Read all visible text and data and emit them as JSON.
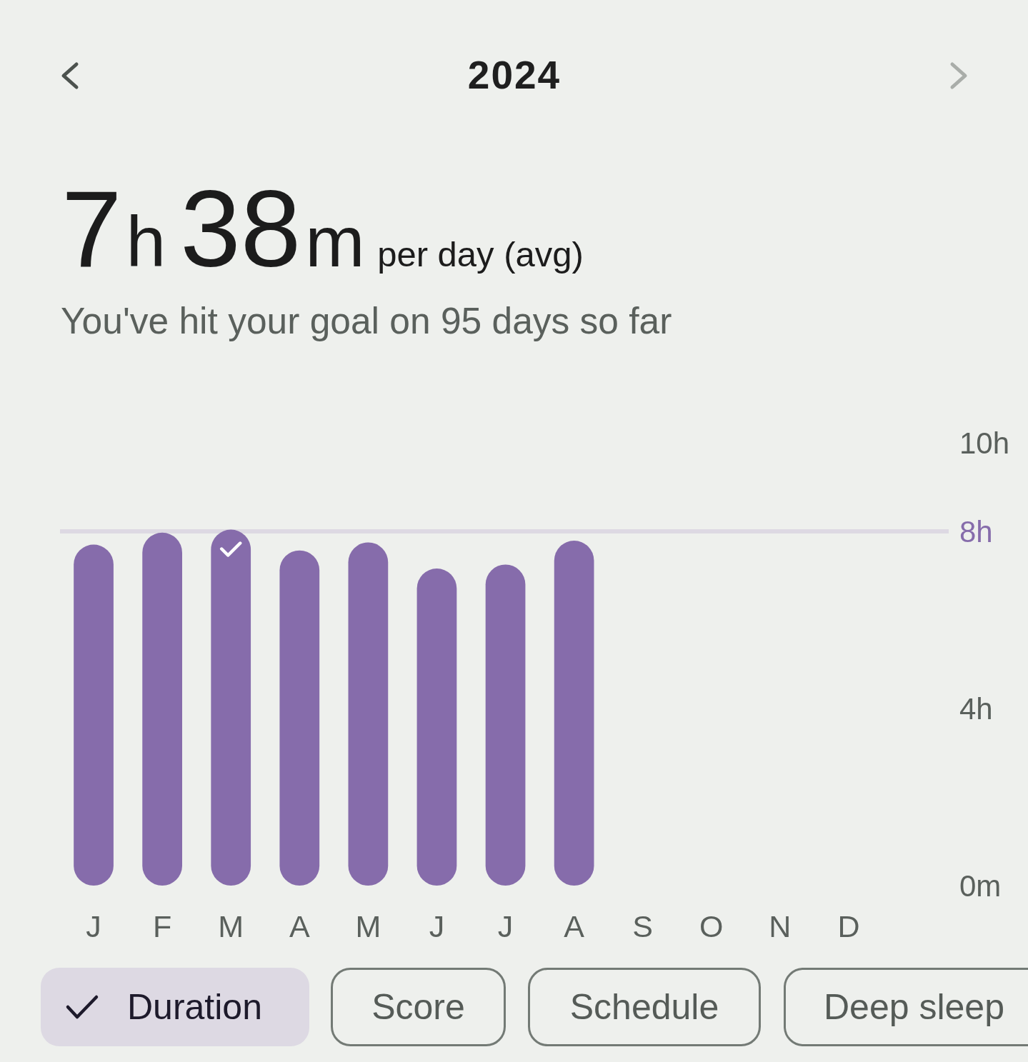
{
  "chart_data": {
    "type": "bar",
    "title": "2024",
    "subtitle": "7h38m per day (avg)",
    "annotations": [
      "You've hit your goal on 95 days so far",
      "Duration",
      "Score",
      "Schedule",
      "Deep sleep"
    ],
    "categories": [
      "J",
      "F",
      "M",
      "A",
      "M",
      "J",
      "J",
      "A",
      "S",
      "O",
      "N",
      "D"
    ],
    "values": [
      7.7,
      7.97,
      8.04,
      7.57,
      7.75,
      7.16,
      7.25,
      7.79,
      null,
      null,
      null,
      null
    ],
    "color": "#866cab",
    "ylim": [
      0,
      10
    ],
    "yticks": [
      {
        "value": 0,
        "label": "0m"
      },
      {
        "value": 4,
        "label": "4h"
      },
      {
        "value": 10,
        "label": "10h"
      }
    ],
    "ref_lines": [
      {
        "axis": "y",
        "value": 8,
        "label": "8h",
        "color": "#ddd9e3"
      }
    ]
  }
}
